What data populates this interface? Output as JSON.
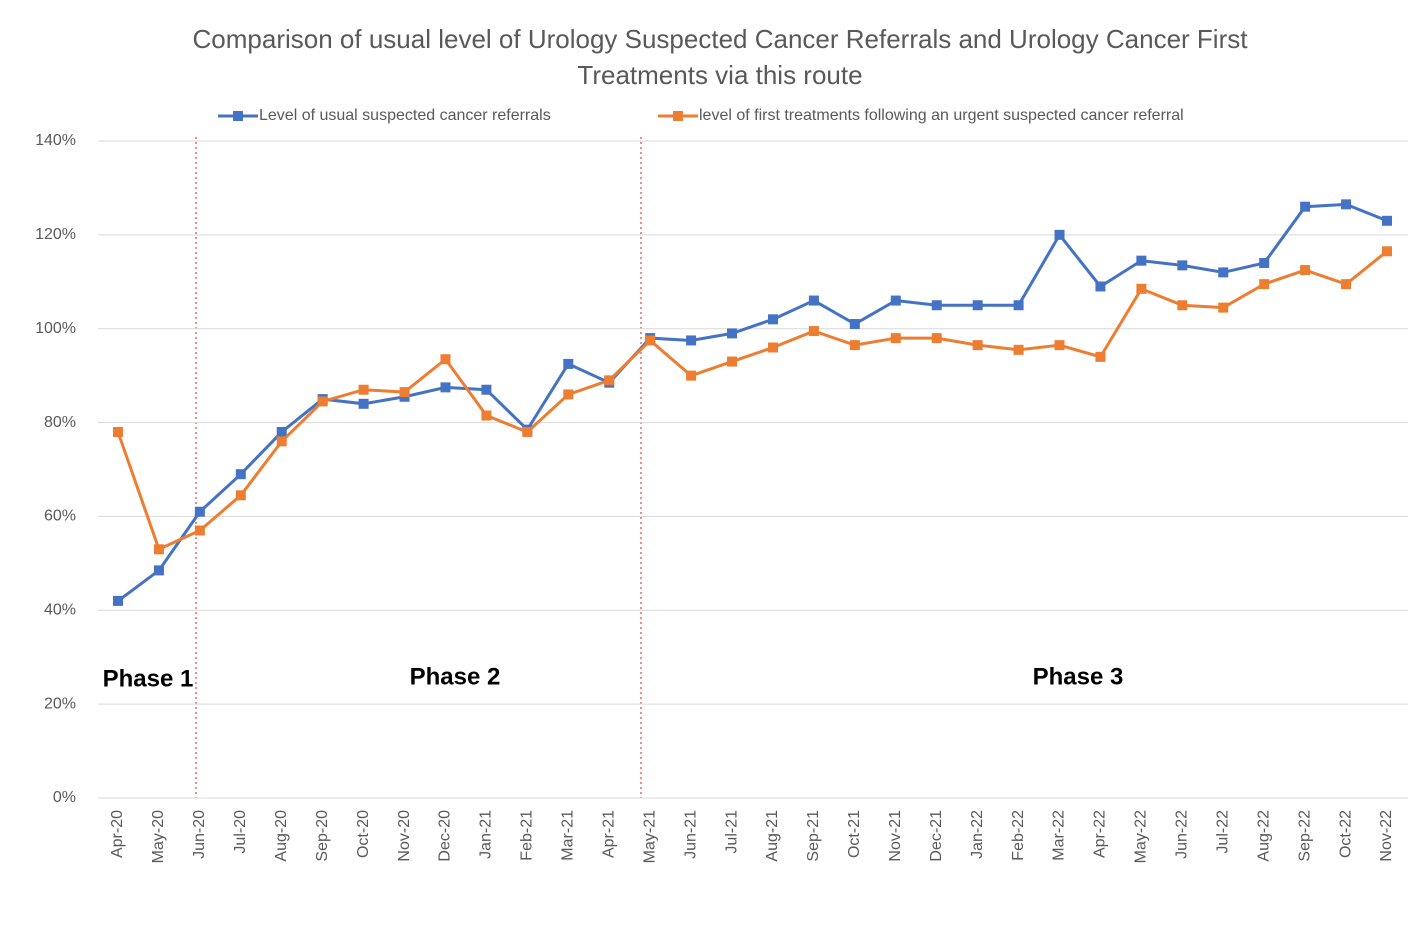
{
  "chart_data": {
    "type": "line",
    "title": "Comparison of usual level of Urology Suspected Cancer Referrals and Urology Cancer First Treatments via this route",
    "categories": [
      "Apr-20",
      "May-20",
      "Jun-20",
      "Jul-20",
      "Aug-20",
      "Sep-20",
      "Oct-20",
      "Nov-20",
      "Dec-20",
      "Jan-21",
      "Feb-21",
      "Mar-21",
      "Apr-21",
      "May-21",
      "Jun-21",
      "Jul-21",
      "Aug-21",
      "Sep-21",
      "Oct-21",
      "Nov-21",
      "Dec-21",
      "Jan-22",
      "Feb-22",
      "Mar-22",
      "Apr-22",
      "May-22",
      "Jun-22",
      "Jul-22",
      "Aug-22",
      "Sep-22",
      "Oct-22",
      "Nov-22"
    ],
    "series": [
      {
        "name": "Level of usual suspected cancer referrals",
        "color": "#4472c4",
        "values": [
          42,
          48.5,
          61,
          69,
          78,
          85,
          84,
          85.5,
          87.5,
          87,
          78.5,
          92.5,
          88.5,
          98,
          97.5,
          99,
          102,
          106,
          101,
          106,
          105,
          105,
          105,
          120,
          109,
          114.5,
          113.5,
          112,
          114,
          126,
          126.5,
          123
        ]
      },
      {
        "name": "level of first treatments following an urgent suspected cancer referral",
        "color": "#ed7d31",
        "values": [
          78,
          53,
          57,
          64.5,
          76,
          84.5,
          87,
          86.5,
          93.5,
          81.5,
          78,
          86,
          89,
          97.5,
          90,
          93,
          96,
          99.5,
          96.5,
          98,
          98,
          96.5,
          95.5,
          96.5,
          94,
          108.5,
          105,
          104.5,
          109.5,
          112.5,
          109.5,
          116.5
        ]
      }
    ],
    "ylim": [
      0,
      140
    ],
    "yticks": [
      {
        "value": 0,
        "label": "0%"
      },
      {
        "value": 20,
        "label": "20%"
      },
      {
        "value": 40,
        "label": "40%"
      },
      {
        "value": 60,
        "label": "60%"
      },
      {
        "value": 80,
        "label": "80%"
      },
      {
        "value": 100,
        "label": "100%"
      },
      {
        "value": 120,
        "label": "120%"
      },
      {
        "value": 140,
        "label": "140%"
      }
    ],
    "grid": true,
    "legend": "top",
    "annotations": [
      "Phase 1",
      "Phase 2",
      "Phase 3"
    ]
  }
}
